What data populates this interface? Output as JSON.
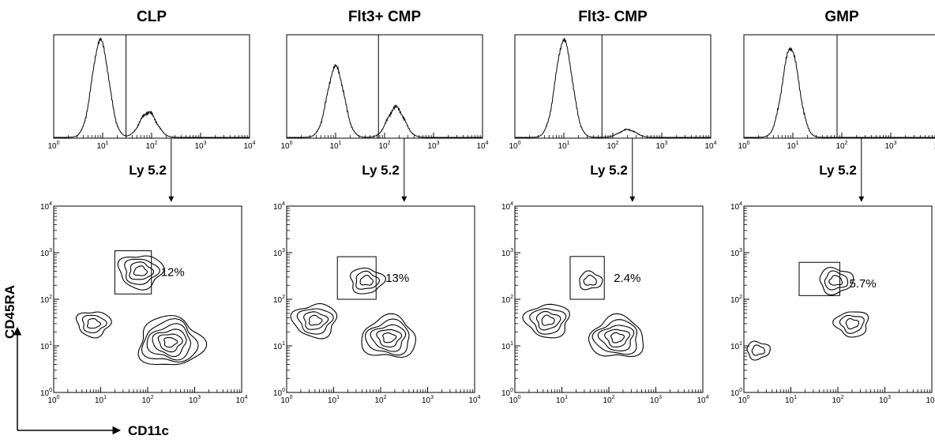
{
  "chart_data": {
    "type": "flow-cytometry",
    "x_axis_label": "CD11c",
    "y_axis_label": "CD45RA",
    "histogram_marker_label": "Ly 5.2",
    "log_scale": true,
    "axis_range": [
      1,
      10000
    ],
    "tick_exponents": [
      "0",
      "1",
      "2",
      "3",
      "4"
    ],
    "panels": [
      {
        "title": "CLP",
        "histogram": {
          "gate_threshold": 30,
          "peaks": [
            {
              "center": 9,
              "height": 1.0
            },
            {
              "center": 85,
              "height": 0.26
            }
          ]
        },
        "contour": {
          "gate": {
            "x": [
              20,
              120
            ],
            "y": [
              130,
              1100
            ]
          },
          "gate_percent": "12%",
          "clusters": [
            {
              "x": 70,
              "y": 400,
              "levels": 4
            },
            {
              "x": 7,
              "y": 30,
              "levels": 3
            },
            {
              "x": 300,
              "y": 12,
              "levels": 6
            }
          ]
        }
      },
      {
        "title": "Flt3+ CMP",
        "histogram": {
          "gate_threshold": 75,
          "peaks": [
            {
              "center": 10,
              "height": 0.73
            },
            {
              "center": 170,
              "height": 0.31
            }
          ]
        },
        "contour": {
          "gate": {
            "x": [
              12,
              80
            ],
            "y": [
              100,
              820
            ]
          },
          "gate_percent": "13%",
          "clusters": [
            {
              "x": 50,
              "y": 250,
              "levels": 3
            },
            {
              "x": 4,
              "y": 35,
              "levels": 4
            },
            {
              "x": 150,
              "y": 15,
              "levels": 5
            }
          ]
        }
      },
      {
        "title": "Flt3- CMP",
        "histogram": {
          "gate_threshold": 60,
          "peaks": [
            {
              "center": 10,
              "height": 1.0
            },
            {
              "center": 200,
              "height": 0.08
            }
          ]
        },
        "contour": {
          "gate": {
            "x": [
              15,
              80
            ],
            "y": [
              100,
              830
            ]
          },
          "gate_percent": "2.4%",
          "clusters": [
            {
              "x": 40,
              "y": 250,
              "levels": 2
            },
            {
              "x": 5,
              "y": 35,
              "levels": 4
            },
            {
              "x": 150,
              "y": 15,
              "levels": 5
            }
          ]
        }
      },
      {
        "title": "GMP",
        "histogram": {
          "gate_threshold": 80,
          "peaks": [
            {
              "center": 9,
              "height": 0.92
            }
          ]
        },
        "contour": {
          "gate": {
            "x": [
              15,
              110
            ],
            "y": [
              120,
              620
            ]
          },
          "gate_percent": "5.7%",
          "clusters": [
            {
              "x": 90,
              "y": 250,
              "levels": 3
            },
            {
              "x": 2,
              "y": 8,
              "levels": 2
            },
            {
              "x": 200,
              "y": 30,
              "levels": 3
            }
          ]
        }
      }
    ]
  }
}
